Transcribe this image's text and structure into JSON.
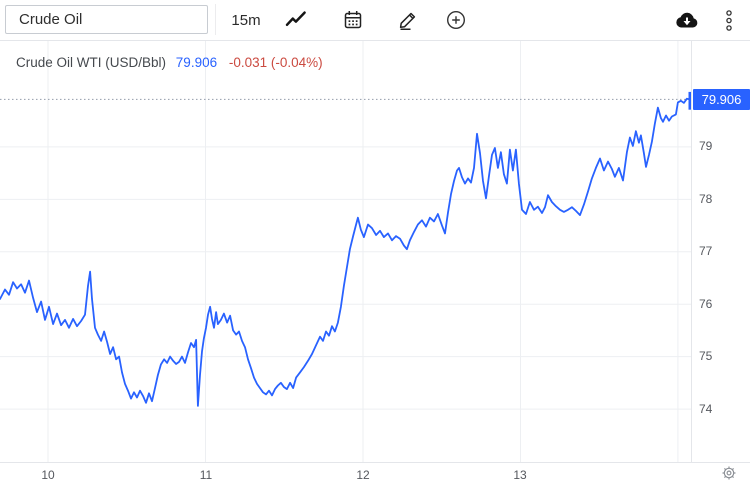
{
  "toolbar": {
    "symbol": "Crude Oil",
    "interval": "15m",
    "left_icons": [
      "line-chart",
      "calendar",
      "draw",
      "add"
    ],
    "right_icons": [
      "cloud-download",
      "more-menu"
    ]
  },
  "legend": {
    "title": "Crude Oil WTI (USD/Bbl)",
    "price": "79.906",
    "change": "-0.031 (-0.04%)"
  },
  "price_label": "79.906",
  "colors": {
    "line": "#2962FF",
    "price_label_bg": "#2962FF",
    "legend_price": "#2962FF",
    "legend_change": "#cb4a40",
    "grid": "#edeff2",
    "axis_text": "#55585e",
    "dotted_line": "#939cab"
  },
  "chart_data": {
    "type": "line",
    "title": "Crude Oil WTI (USD/Bbl)",
    "interval": "15m",
    "unit": "USD/Bbl",
    "last_price": 79.906,
    "change": -0.031,
    "change_pct": "-0.04%",
    "x_unit": "hour-of-day",
    "xlim": [
      9.695,
      14.083
    ],
    "ylim": [
      72.99,
      81.04
    ],
    "x_ticks": [
      {
        "value": 10,
        "label": "10"
      },
      {
        "value": 11,
        "label": "11"
      },
      {
        "value": 12,
        "label": "12"
      },
      {
        "value": 13,
        "label": "13"
      },
      {
        "value": 14,
        "label": ""
      }
    ],
    "y_ticks": [
      74,
      75,
      76,
      77,
      78,
      79
    ],
    "grid": true,
    "marker_span": [
      79.71,
      80.05
    ],
    "points": [
      [
        9.695,
        76.1
      ],
      [
        9.727,
        76.28
      ],
      [
        9.752,
        76.18
      ],
      [
        9.778,
        76.42
      ],
      [
        9.803,
        76.3
      ],
      [
        9.829,
        76.38
      ],
      [
        9.854,
        76.22
      ],
      [
        9.879,
        76.45
      ],
      [
        9.905,
        76.12
      ],
      [
        9.93,
        75.85
      ],
      [
        9.956,
        76.05
      ],
      [
        9.981,
        75.7
      ],
      [
        10.006,
        75.95
      ],
      [
        10.032,
        75.62
      ],
      [
        10.057,
        75.82
      ],
      [
        10.083,
        75.6
      ],
      [
        10.108,
        75.7
      ],
      [
        10.133,
        75.55
      ],
      [
        10.159,
        75.72
      ],
      [
        10.184,
        75.58
      ],
      [
        10.21,
        75.68
      ],
      [
        10.235,
        75.8
      ],
      [
        10.254,
        76.35
      ],
      [
        10.267,
        76.62
      ],
      [
        10.279,
        76.1
      ],
      [
        10.298,
        75.55
      ],
      [
        10.317,
        75.42
      ],
      [
        10.337,
        75.3
      ],
      [
        10.356,
        75.48
      ],
      [
        10.375,
        75.28
      ],
      [
        10.394,
        75.05
      ],
      [
        10.413,
        75.18
      ],
      [
        10.432,
        74.95
      ],
      [
        10.451,
        75.0
      ],
      [
        10.47,
        74.7
      ],
      [
        10.489,
        74.48
      ],
      [
        10.508,
        74.35
      ],
      [
        10.527,
        74.2
      ],
      [
        10.546,
        74.32
      ],
      [
        10.565,
        74.22
      ],
      [
        10.584,
        74.35
      ],
      [
        10.603,
        74.25
      ],
      [
        10.622,
        74.12
      ],
      [
        10.641,
        74.3
      ],
      [
        10.66,
        74.15
      ],
      [
        10.679,
        74.4
      ],
      [
        10.698,
        74.65
      ],
      [
        10.717,
        74.85
      ],
      [
        10.737,
        74.95
      ],
      [
        10.756,
        74.88
      ],
      [
        10.775,
        75.0
      ],
      [
        10.794,
        74.92
      ],
      [
        10.813,
        74.86
      ],
      [
        10.832,
        74.9
      ],
      [
        10.851,
        75.0
      ],
      [
        10.87,
        74.88
      ],
      [
        10.889,
        75.08
      ],
      [
        10.908,
        75.26
      ],
      [
        10.927,
        75.18
      ],
      [
        10.94,
        75.32
      ],
      [
        10.952,
        74.06
      ],
      [
        10.965,
        74.65
      ],
      [
        10.978,
        75.1
      ],
      [
        10.99,
        75.35
      ],
      [
        11.003,
        75.55
      ],
      [
        11.016,
        75.8
      ],
      [
        11.029,
        75.95
      ],
      [
        11.041,
        75.72
      ],
      [
        11.054,
        75.55
      ],
      [
        11.067,
        75.85
      ],
      [
        11.079,
        75.62
      ],
      [
        11.098,
        75.7
      ],
      [
        11.117,
        75.82
      ],
      [
        11.137,
        75.65
      ],
      [
        11.156,
        75.78
      ],
      [
        11.175,
        75.5
      ],
      [
        11.194,
        75.42
      ],
      [
        11.213,
        75.48
      ],
      [
        11.232,
        75.3
      ],
      [
        11.251,
        75.18
      ],
      [
        11.27,
        74.95
      ],
      [
        11.289,
        74.78
      ],
      [
        11.308,
        74.6
      ],
      [
        11.327,
        74.48
      ],
      [
        11.346,
        74.4
      ],
      [
        11.365,
        74.32
      ],
      [
        11.384,
        74.28
      ],
      [
        11.403,
        74.35
      ],
      [
        11.422,
        74.26
      ],
      [
        11.441,
        74.38
      ],
      [
        11.46,
        74.45
      ],
      [
        11.479,
        74.5
      ],
      [
        11.498,
        74.42
      ],
      [
        11.517,
        74.38
      ],
      [
        11.537,
        74.5
      ],
      [
        11.556,
        74.4
      ],
      [
        11.575,
        74.6
      ],
      [
        11.6,
        74.7
      ],
      [
        11.625,
        74.8
      ],
      [
        11.651,
        74.92
      ],
      [
        11.676,
        75.05
      ],
      [
        11.702,
        75.22
      ],
      [
        11.727,
        75.38
      ],
      [
        11.746,
        75.3
      ],
      [
        11.765,
        75.48
      ],
      [
        11.784,
        75.4
      ],
      [
        11.803,
        75.58
      ],
      [
        11.822,
        75.48
      ],
      [
        11.841,
        75.65
      ],
      [
        11.86,
        75.95
      ],
      [
        11.879,
        76.35
      ],
      [
        11.898,
        76.7
      ],
      [
        11.917,
        77.05
      ],
      [
        11.937,
        77.3
      ],
      [
        11.956,
        77.52
      ],
      [
        11.968,
        77.65
      ],
      [
        11.987,
        77.42
      ],
      [
        12.006,
        77.28
      ],
      [
        12.032,
        77.52
      ],
      [
        12.057,
        77.45
      ],
      [
        12.083,
        77.32
      ],
      [
        12.108,
        77.4
      ],
      [
        12.133,
        77.28
      ],
      [
        12.159,
        77.35
      ],
      [
        12.184,
        77.22
      ],
      [
        12.21,
        77.3
      ],
      [
        12.235,
        77.25
      ],
      [
        12.26,
        77.12
      ],
      [
        12.279,
        77.05
      ],
      [
        12.298,
        77.22
      ],
      [
        12.324,
        77.38
      ],
      [
        12.349,
        77.52
      ],
      [
        12.375,
        77.6
      ],
      [
        12.4,
        77.48
      ],
      [
        12.425,
        77.65
      ],
      [
        12.451,
        77.58
      ],
      [
        12.476,
        77.72
      ],
      [
        12.502,
        77.5
      ],
      [
        12.521,
        77.35
      ],
      [
        12.54,
        77.75
      ],
      [
        12.559,
        78.1
      ],
      [
        12.578,
        78.35
      ],
      [
        12.597,
        78.55
      ],
      [
        12.61,
        78.6
      ],
      [
        12.629,
        78.42
      ],
      [
        12.648,
        78.3
      ],
      [
        12.667,
        78.4
      ],
      [
        12.686,
        78.32
      ],
      [
        12.705,
        78.6
      ],
      [
        12.724,
        79.25
      ],
      [
        12.743,
        78.88
      ],
      [
        12.762,
        78.35
      ],
      [
        12.781,
        78.02
      ],
      [
        12.8,
        78.45
      ],
      [
        12.819,
        78.85
      ],
      [
        12.838,
        78.98
      ],
      [
        12.857,
        78.6
      ],
      [
        12.876,
        78.9
      ],
      [
        12.895,
        78.48
      ],
      [
        12.914,
        78.3
      ],
      [
        12.933,
        78.95
      ],
      [
        12.952,
        78.55
      ],
      [
        12.971,
        78.95
      ],
      [
        12.99,
        78.3
      ],
      [
        13.01,
        77.8
      ],
      [
        13.035,
        77.72
      ],
      [
        13.06,
        77.95
      ],
      [
        13.086,
        77.8
      ],
      [
        13.111,
        77.86
      ],
      [
        13.137,
        77.74
      ],
      [
        13.156,
        77.85
      ],
      [
        13.175,
        78.08
      ],
      [
        13.2,
        77.95
      ],
      [
        13.225,
        77.87
      ],
      [
        13.251,
        77.8
      ],
      [
        13.276,
        77.76
      ],
      [
        13.302,
        77.8
      ],
      [
        13.327,
        77.85
      ],
      [
        13.352,
        77.78
      ],
      [
        13.378,
        77.7
      ],
      [
        13.403,
        77.9
      ],
      [
        13.429,
        78.15
      ],
      [
        13.454,
        78.4
      ],
      [
        13.479,
        78.6
      ],
      [
        13.505,
        78.78
      ],
      [
        13.53,
        78.55
      ],
      [
        13.556,
        78.72
      ],
      [
        13.581,
        78.58
      ],
      [
        13.6,
        78.43
      ],
      [
        13.625,
        78.6
      ],
      [
        13.651,
        78.36
      ],
      [
        13.676,
        78.9
      ],
      [
        13.695,
        79.18
      ],
      [
        13.714,
        79.02
      ],
      [
        13.733,
        79.3
      ],
      [
        13.752,
        79.08
      ],
      [
        13.765,
        79.22
      ],
      [
        13.784,
        78.88
      ],
      [
        13.797,
        78.62
      ],
      [
        13.816,
        78.85
      ],
      [
        13.835,
        79.1
      ],
      [
        13.854,
        79.45
      ],
      [
        13.873,
        79.75
      ],
      [
        13.892,
        79.55
      ],
      [
        13.905,
        79.48
      ],
      [
        13.924,
        79.6
      ],
      [
        13.943,
        79.5
      ],
      [
        13.962,
        79.58
      ],
      [
        13.987,
        79.62
      ],
      [
        14.0,
        79.85
      ],
      [
        14.019,
        79.88
      ],
      [
        14.038,
        79.84
      ],
      [
        14.057,
        79.92
      ],
      [
        14.076,
        79.906
      ]
    ]
  }
}
